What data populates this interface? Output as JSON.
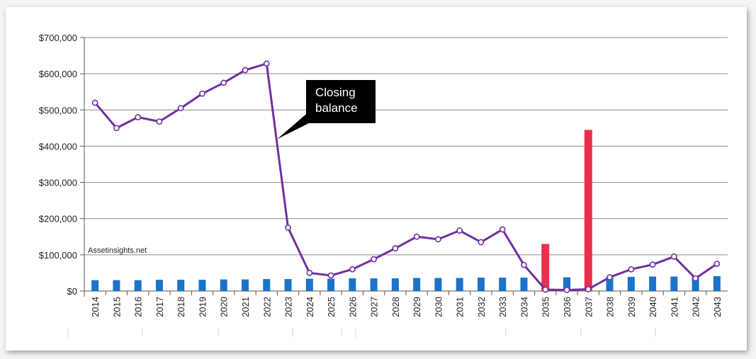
{
  "chart_data": {
    "type": "bar+line",
    "x": [
      "2014",
      "2015",
      "2016",
      "2017",
      "2018",
      "2019",
      "2020",
      "2021",
      "2022",
      "2023",
      "2024",
      "2025",
      "2026",
      "2027",
      "2028",
      "2029",
      "2030",
      "2031",
      "2032",
      "2033",
      "2034",
      "2035",
      "2036",
      "2037",
      "2038",
      "2039",
      "2040",
      "2041",
      "2042",
      "2043"
    ],
    "ylim": [
      0,
      700000
    ],
    "yticks": [
      0,
      100000,
      200000,
      300000,
      400000,
      500000,
      600000,
      700000
    ],
    "ytick_labels": [
      "$0",
      "$100,000",
      "$200,000",
      "$300,000",
      "$400,000",
      "$500,000",
      "$600,000",
      "$700,000"
    ],
    "grid": true,
    "series": [
      {
        "kind": "bar",
        "color": "#1a73c8",
        "values": [
          30000,
          30000,
          30000,
          31000,
          31000,
          31000,
          32000,
          32000,
          33000,
          33000,
          34000,
          34000,
          35000,
          35000,
          35000,
          36000,
          36000,
          36000,
          37000,
          37000,
          37000,
          38000,
          38000,
          38000,
          39000,
          39000,
          40000,
          40000,
          40000,
          41000
        ]
      },
      {
        "kind": "bar",
        "color": "#e8304c",
        "values": [
          0,
          0,
          0,
          0,
          0,
          0,
          0,
          0,
          0,
          0,
          0,
          0,
          0,
          0,
          0,
          0,
          0,
          0,
          0,
          0,
          0,
          130000,
          0,
          445000,
          0,
          0,
          0,
          0,
          0,
          0
        ]
      },
      {
        "kind": "line",
        "color": "#7030a0",
        "values": [
          520000,
          450000,
          480000,
          468000,
          505000,
          545000,
          575000,
          610000,
          628000,
          175000,
          50000,
          43000,
          60000,
          88000,
          118000,
          150000,
          143000,
          167000,
          135000,
          170000,
          72000,
          4000,
          3000,
          5000,
          38000,
          60000,
          73000,
          95000,
          35000,
          75000
        ]
      }
    ],
    "annotations": [
      {
        "text_lines": [
          "Closing",
          "balance"
        ],
        "points_to": {
          "x": "2022.5",
          "y": 420000
        }
      }
    ]
  },
  "watermark": "Assetinsights.net"
}
